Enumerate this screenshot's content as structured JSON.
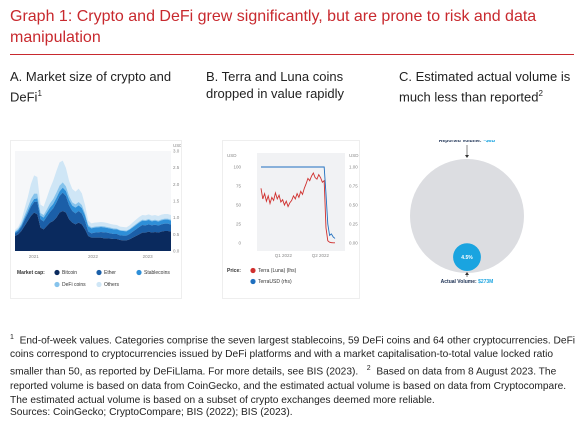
{
  "header": {
    "title": "Graph 1: Crypto and DeFi grew significantly, but are prone to risk and data manipulation"
  },
  "panels": {
    "a": {
      "title": "A. Market size of crypto and DeFi",
      "sup": "1"
    },
    "b": {
      "title": "B. Terra and Luna coins dropped in value rapidly"
    },
    "c": {
      "title": "C. Estimated actual volume is much less than reported",
      "sup": "2"
    }
  },
  "footnote": {
    "sup1": "1",
    "text1": "End-of-week values. Categories comprise the seven largest stablecoins, 59 DeFi coins and 64 other cryptocurrencies. DeFi coins correspond to cryptocurrencies issued by DeFi platforms and with a market capitalisation-to-total value locked ratio smaller than 50, as reported by DeFiLlama. For more details, see BIS (2023).",
    "sup2": "2",
    "text2": "Based on data from 8 August 2023. The reported volume is based on data from CoinGecko, and the estimated actual volume is based on data from Cryptocompare. The estimated actual volume is based on a subset of crypto exchanges deemed more reliable."
  },
  "sources": "Sources: CoinGecko; CryptoCompare; BIS (2022); BIS (2023).",
  "chart_data": [
    {
      "type": "area",
      "title": "A. Market size of crypto and DeFi",
      "ylabel": "USD trn",
      "ylim": [
        0,
        3
      ],
      "y_ticks": [
        "3.0",
        "2.5",
        "2.0",
        "1.5",
        "1.0",
        "0.5",
        "0.0"
      ],
      "x_ticks": [
        "2021",
        "2022",
        "2023"
      ],
      "legend_title": "Market cap:",
      "legend_position": "bottom",
      "stacked": true,
      "x": [
        0,
        1,
        2,
        3,
        4,
        5,
        6,
        7,
        8,
        9,
        10,
        11,
        12,
        13,
        14,
        15,
        16,
        17,
        18,
        19,
        20,
        21,
        22,
        23,
        24,
        25,
        26,
        27,
        28,
        29,
        30,
        31,
        32,
        33,
        34,
        35,
        36,
        37,
        38,
        39,
        40,
        41,
        42,
        43,
        44,
        45,
        46,
        47,
        48,
        49
      ],
      "series": [
        {
          "name": "Bitcoin",
          "color": "#0a2a5e",
          "values": [
            0.45,
            0.5,
            0.6,
            0.75,
            0.9,
            1.05,
            1.15,
            1.1,
            0.7,
            0.65,
            0.75,
            0.85,
            0.9,
            1.0,
            1.15,
            1.2,
            1.15,
            0.95,
            0.85,
            0.8,
            0.85,
            0.8,
            0.65,
            0.45,
            0.4,
            0.4,
            0.4,
            0.4,
            0.38,
            0.38,
            0.37,
            0.36,
            0.36,
            0.33,
            0.32,
            0.32,
            0.35,
            0.4,
            0.45,
            0.5,
            0.55,
            0.55,
            0.58,
            0.55,
            0.57,
            0.55,
            0.58,
            0.6,
            0.6,
            0.58
          ]
        },
        {
          "name": "Ether",
          "color": "#1b5fa8",
          "values": [
            0.08,
            0.09,
            0.12,
            0.18,
            0.22,
            0.28,
            0.32,
            0.38,
            0.25,
            0.24,
            0.28,
            0.32,
            0.38,
            0.45,
            0.5,
            0.55,
            0.5,
            0.42,
            0.35,
            0.33,
            0.35,
            0.32,
            0.25,
            0.14,
            0.13,
            0.15,
            0.16,
            0.17,
            0.18,
            0.17,
            0.16,
            0.15,
            0.15,
            0.14,
            0.14,
            0.14,
            0.16,
            0.18,
            0.2,
            0.22,
            0.23,
            0.22,
            0.22,
            0.22,
            0.22,
            0.21,
            0.22,
            0.22,
            0.22,
            0.21
          ]
        },
        {
          "name": "Stablecoins",
          "color": "#2e8fd8",
          "values": [
            0.03,
            0.04,
            0.05,
            0.06,
            0.07,
            0.08,
            0.09,
            0.1,
            0.11,
            0.11,
            0.12,
            0.13,
            0.13,
            0.14,
            0.14,
            0.15,
            0.15,
            0.16,
            0.16,
            0.17,
            0.17,
            0.17,
            0.17,
            0.15,
            0.15,
            0.15,
            0.15,
            0.15,
            0.15,
            0.14,
            0.14,
            0.14,
            0.14,
            0.14,
            0.14,
            0.13,
            0.13,
            0.13,
            0.13,
            0.13,
            0.13,
            0.13,
            0.13,
            0.12,
            0.12,
            0.12,
            0.12,
            0.12,
            0.12,
            0.12
          ]
        },
        {
          "name": "DeFi coins",
          "color": "#86c3ec",
          "values": [
            0.02,
            0.03,
            0.05,
            0.08,
            0.12,
            0.15,
            0.16,
            0.14,
            0.08,
            0.08,
            0.1,
            0.13,
            0.15,
            0.16,
            0.17,
            0.16,
            0.14,
            0.12,
            0.1,
            0.1,
            0.1,
            0.09,
            0.06,
            0.04,
            0.03,
            0.03,
            0.03,
            0.03,
            0.03,
            0.03,
            0.03,
            0.03,
            0.02,
            0.02,
            0.02,
            0.02,
            0.02,
            0.03,
            0.03,
            0.03,
            0.03,
            0.03,
            0.03,
            0.03,
            0.03,
            0.03,
            0.03,
            0.03,
            0.03,
            0.03
          ]
        },
        {
          "name": "Others",
          "color": "#cfe6f6",
          "values": [
            0.05,
            0.06,
            0.1,
            0.2,
            0.3,
            0.45,
            0.55,
            0.5,
            0.25,
            0.25,
            0.35,
            0.45,
            0.55,
            0.65,
            0.7,
            0.65,
            0.55,
            0.45,
            0.4,
            0.38,
            0.4,
            0.35,
            0.25,
            0.13,
            0.12,
            0.12,
            0.12,
            0.12,
            0.12,
            0.12,
            0.11,
            0.11,
            0.11,
            0.1,
            0.1,
            0.1,
            0.11,
            0.12,
            0.13,
            0.14,
            0.14,
            0.14,
            0.14,
            0.14,
            0.14,
            0.14,
            0.14,
            0.14,
            0.14,
            0.14
          ]
        }
      ]
    },
    {
      "type": "line",
      "title": "B. Terra and Luna coins dropped in value rapidly",
      "ylabel_left": "USD",
      "ylabel_right": "USD",
      "y_left_ticks": [
        "100",
        "75",
        "50",
        "25",
        "0"
      ],
      "y_right_ticks": [
        "1.00",
        "0.75",
        "0.50",
        "0.25",
        "0.00"
      ],
      "ylim_left": [
        0,
        100
      ],
      "ylim_right": [
        0,
        1
      ],
      "x_ticks": [
        "Q1 2022",
        "Q2 2022"
      ],
      "legend_title": "Price:",
      "legend_position": "bottom",
      "series": [
        {
          "name": "Terra (Luna) (lhs)",
          "color": "#d0302e",
          "axis": "left",
          "values": [
            72,
            58,
            65,
            55,
            62,
            52,
            60,
            56,
            66,
            58,
            63,
            54,
            57,
            50,
            55,
            48,
            53,
            56,
            62,
            58,
            65,
            60,
            68,
            64,
            72,
            78,
            85,
            82,
            88,
            92,
            86,
            84,
            90,
            86,
            80,
            82,
            20,
            3,
            1,
            0.5,
            0.3,
            0.2
          ]
        },
        {
          "name": "TerraUSD (rhs)",
          "color": "#1f6fbf",
          "axis": "right",
          "values": [
            1.0,
            1.0,
            1.0,
            1.0,
            1.0,
            1.0,
            1.0,
            1.0,
            1.0,
            1.0,
            1.0,
            1.0,
            1.0,
            1.0,
            1.0,
            1.0,
            1.0,
            1.0,
            1.0,
            1.0,
            1.0,
            1.0,
            1.0,
            1.0,
            1.0,
            1.0,
            1.0,
            1.0,
            1.0,
            1.0,
            1.0,
            1.0,
            1.0,
            1.0,
            1.0,
            1.0,
            0.65,
            0.25,
            0.1,
            0.12,
            0.08,
            0.06
          ]
        }
      ]
    },
    {
      "type": "pie",
      "title": "C. Estimated actual volume is much less than reported",
      "reported_label": "Reported Volume:",
      "reported_value": "~$6B",
      "actual_label": "Actual Volume:",
      "actual_value": "$273M",
      "share_label": "4.5%",
      "actual_share": 0.045,
      "colors": {
        "reported": "#dcdde1",
        "actual": "#1aa4e0"
      }
    }
  ]
}
